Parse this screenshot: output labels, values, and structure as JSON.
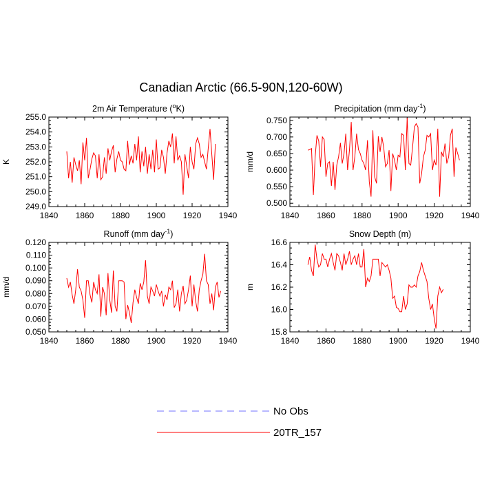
{
  "figure": {
    "title": "Canadian Arctic (66.5-90N,120-60W)",
    "legend": [
      {
        "label": "No Obs",
        "color": "#7070ff",
        "style": "dashed"
      },
      {
        "label": "20TR_157",
        "color": "#ff0000",
        "style": "solid"
      }
    ]
  },
  "chart_data": [
    {
      "type": "line",
      "title": "2m Air Temperature (",
      "title_sup": "o",
      "title_suffix": "K)",
      "ylabel": "K",
      "xlim": [
        1840,
        1940
      ],
      "ylim": [
        249.0,
        255.0
      ],
      "xticks": [
        "1840",
        "1860",
        "1880",
        "1900",
        "1920",
        "1940"
      ],
      "yticks": [
        "249.0",
        "250.0",
        "251.0",
        "252.0",
        "253.0",
        "254.0",
        "255.0"
      ],
      "series": [
        {
          "name": "20TR_157",
          "x_start": 1850,
          "values": [
            252.7,
            250.9,
            252.0,
            250.6,
            252.3,
            251.8,
            251.4,
            252.1,
            250.5,
            253.3,
            252.1,
            253.6,
            250.9,
            251.5,
            252.2,
            252.6,
            252.4,
            250.9,
            252.5,
            250.8,
            251.0,
            252.3,
            251.2,
            252.9,
            252.1,
            252.7,
            253.1,
            251.3,
            252.2,
            252.7,
            252.1,
            252.0,
            251.5,
            251.4,
            253.4,
            251.8,
            252.4,
            251.9,
            253.2,
            252.1,
            253.7,
            251.3,
            252.7,
            251.7,
            253.0,
            251.2,
            252.5,
            251.5,
            252.8,
            251.3,
            253.5,
            251.5,
            251.6,
            252.8,
            252.3,
            251.2,
            252.6,
            253.4,
            253.0,
            253.9,
            251.9,
            253.7,
            252.1,
            252.4,
            252.0,
            249.8,
            252.5,
            251.7,
            250.9,
            253.0,
            252.0,
            251.5,
            253.2,
            253.6,
            253.2,
            252.3,
            252.5,
            252.0,
            251.5,
            252.9,
            254.2,
            252.5,
            250.8,
            253.2
          ]
        }
      ]
    },
    {
      "type": "line",
      "title": "Precipitation (mm day",
      "title_sup": "-1",
      "title_suffix": ")",
      "ylabel": "mm/d",
      "xlim": [
        1840,
        1940
      ],
      "ylim": [
        0.49,
        0.76
      ],
      "xticks": [
        "1840",
        "1860",
        "1880",
        "1900",
        "1920",
        "1940"
      ],
      "yticks": [
        "0.500",
        "0.550",
        "0.600",
        "0.650",
        "0.700",
        "0.750"
      ],
      "ytick_values": [
        0.5,
        0.55,
        0.6,
        0.65,
        0.7,
        0.75
      ],
      "series": [
        {
          "name": "20TR_157",
          "x_start": 1850,
          "values": [
            0.66,
            0.662,
            0.665,
            0.525,
            0.64,
            0.705,
            0.688,
            0.61,
            0.7,
            0.692,
            0.58,
            0.62,
            0.625,
            0.552,
            0.625,
            0.54,
            0.615,
            0.64,
            0.682,
            0.62,
            0.65,
            0.71,
            0.6,
            0.66,
            0.745,
            0.6,
            0.64,
            0.71,
            0.662,
            0.65,
            0.63,
            0.62,
            0.6,
            0.69,
            0.565,
            0.52,
            0.72,
            0.58,
            0.56,
            0.702,
            0.655,
            0.7,
            0.67,
            0.61,
            0.62,
            0.66,
            0.537,
            0.65,
            0.63,
            0.6,
            0.645,
            0.64,
            0.71,
            0.705,
            0.6,
            0.758,
            0.62,
            0.615,
            0.67,
            0.73,
            0.74,
            0.73,
            0.56,
            0.59,
            0.64,
            0.66,
            0.705,
            0.7,
            0.71,
            0.6,
            0.63,
            0.615,
            0.725,
            0.52,
            0.655,
            0.64,
            0.68,
            0.62,
            0.64,
            0.705,
            0.725,
            0.58,
            0.668,
            0.65,
            0.63
          ]
        }
      ]
    },
    {
      "type": "line",
      "title": "Runoff (mm day",
      "title_sup": "-1",
      "title_suffix": ")",
      "ylabel": "mm/d",
      "xlim": [
        1840,
        1940
      ],
      "ylim": [
        0.05,
        0.12
      ],
      "xticks": [
        "1840",
        "1860",
        "1880",
        "1900",
        "1920",
        "1940"
      ],
      "yticks": [
        "0.050",
        "0.060",
        "0.070",
        "0.080",
        "0.090",
        "0.100",
        "0.110",
        "0.120"
      ],
      "series": [
        {
          "name": "20TR_157",
          "x_start": 1850,
          "values": [
            0.092,
            0.085,
            0.089,
            0.079,
            0.072,
            0.083,
            0.099,
            0.085,
            0.082,
            0.075,
            0.061,
            0.09,
            0.09,
            0.079,
            0.073,
            0.089,
            0.083,
            0.08,
            0.095,
            0.062,
            0.085,
            0.08,
            0.063,
            0.096,
            0.075,
            0.065,
            0.098,
            0.07,
            0.066,
            0.09,
            0.09,
            0.09,
            0.089,
            0.06,
            0.071,
            0.065,
            0.057,
            0.073,
            0.083,
            0.077,
            0.072,
            0.088,
            0.083,
            0.089,
            0.106,
            0.078,
            0.072,
            0.085,
            0.082,
            0.078,
            0.087,
            0.082,
            0.078,
            0.082,
            0.07,
            0.079,
            0.075,
            0.085,
            0.083,
            0.09,
            0.069,
            0.072,
            0.083,
            0.066,
            0.08,
            0.086,
            0.072,
            0.075,
            0.083,
            0.094,
            0.07,
            0.087,
            0.074,
            0.066,
            0.083,
            0.09,
            0.095,
            0.111,
            0.09,
            0.087,
            0.072,
            0.08,
            0.067,
            0.085,
            0.089,
            0.077,
            0.082
          ]
        }
      ]
    },
    {
      "type": "line",
      "title": "Snow Depth (m)",
      "title_sup": "",
      "title_suffix": "",
      "ylabel": "m",
      "xlim": [
        1840,
        1940
      ],
      "ylim": [
        15.8,
        16.6
      ],
      "xticks": [
        "1840",
        "1860",
        "1880",
        "1900",
        "1920",
        "1940"
      ],
      "yticks": [
        "15.8",
        "16.0",
        "16.2",
        "16.4",
        "16.6"
      ],
      "series": [
        {
          "name": "20TR_157",
          "x_start": 1850,
          "values": [
            16.4,
            16.47,
            16.35,
            16.3,
            16.58,
            16.45,
            16.38,
            16.4,
            16.5,
            16.45,
            16.45,
            16.38,
            16.45,
            16.5,
            16.42,
            16.35,
            16.5,
            16.48,
            16.42,
            16.35,
            16.5,
            16.4,
            16.45,
            16.52,
            16.4,
            16.45,
            16.48,
            16.4,
            16.5,
            16.38,
            16.38,
            16.54,
            16.2,
            16.28,
            16.25,
            16.3,
            16.45,
            16.45,
            16.45,
            16.45,
            16.3,
            16.42,
            16.4,
            16.38,
            16.4,
            16.35,
            16.28,
            16.1,
            16.12,
            16.02,
            16.01,
            15.98,
            15.98,
            16.12,
            16.0,
            16.05,
            16.22,
            16.2,
            16.2,
            16.22,
            16.2,
            16.3,
            16.34,
            16.42,
            16.35,
            16.3,
            16.25,
            16.1,
            16.0,
            16.05,
            15.92,
            15.83,
            16.12,
            16.2,
            16.15,
            16.18
          ]
        }
      ]
    }
  ]
}
